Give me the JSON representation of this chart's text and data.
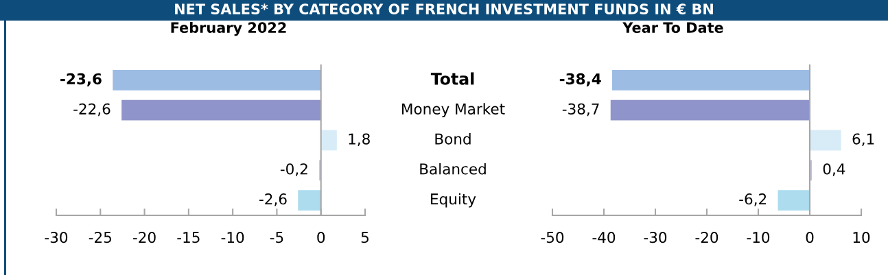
{
  "chart_data": [
    {
      "type": "bar",
      "orientation": "horizontal",
      "title": "February 2022",
      "annotations": [
        "NET SALES* BY CATEGORY OF FRENCH INVESTMENT FUNDS IN € BN"
      ],
      "categories": [
        "Total",
        "Money Market",
        "Bond",
        "Balanced",
        "Equity"
      ],
      "values": [
        -23.6,
        -22.6,
        1.8,
        -0.2,
        -2.6
      ],
      "colors": [
        "#9dbce4",
        "#8f95ca",
        "#d8ecf8",
        "#c5c0e0",
        "#acdcee"
      ],
      "value_labels": [
        "-23,6",
        "-22,6",
        "1,8",
        "-0,2",
        "-2,6"
      ],
      "xlim": [
        -30,
        5
      ],
      "xticks": [
        -30,
        -25,
        -20,
        -15,
        -10,
        -5,
        0,
        5
      ],
      "tick_labels": "x"
    },
    {
      "type": "bar",
      "orientation": "horizontal",
      "title": "Year To Date",
      "categories": [
        "Total",
        "Money Market",
        "Bond",
        "Balanced",
        "Equity"
      ],
      "values": [
        -38.4,
        -38.7,
        6.1,
        0.4,
        -6.2
      ],
      "colors": [
        "#9dbce4",
        "#8f95ca",
        "#d8ecf8",
        "#c5c0e0",
        "#acdcee"
      ],
      "value_labels": [
        "-38,4",
        "-38,7",
        "6,1",
        "0,4",
        "-6,2"
      ],
      "xlim": [
        -50,
        10
      ],
      "xticks": [
        -50,
        -40,
        -30,
        -20,
        -10,
        0,
        10
      ]
    }
  ]
}
